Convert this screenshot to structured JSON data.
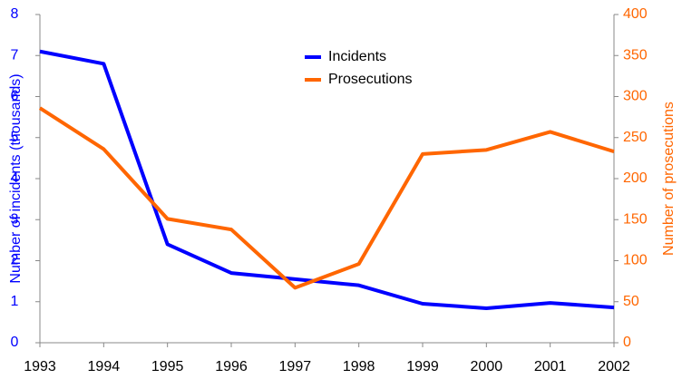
{
  "chart_data": {
    "type": "line",
    "categories": [
      "1993",
      "1994",
      "1995",
      "1996",
      "1997",
      "1998",
      "1999",
      "2000",
      "2001",
      "2002"
    ],
    "series": [
      {
        "name": "Incidents",
        "color": "#0000ff",
        "values": [
          7.1,
          6.8,
          2.4,
          1.7,
          1.55,
          1.4,
          0.95,
          0.84,
          0.97,
          0.86
        ]
      },
      {
        "name": "Prosecutions",
        "color": "#ff6600",
        "axis": "y2",
        "values": [
          286,
          236,
          151,
          138,
          67,
          96,
          230,
          235,
          257,
          233
        ]
      }
    ],
    "ylabel": "Number of incidents (thousands)",
    "y2label": "Number of prosecutions",
    "ylim": [
      0,
      8
    ],
    "yticks": [
      0,
      1,
      2,
      3,
      4,
      5,
      6,
      7,
      8
    ],
    "y2lim": [
      0,
      400
    ],
    "y2ticks": [
      0,
      50,
      100,
      150,
      200,
      250,
      300,
      350,
      400
    ],
    "legend": "top"
  }
}
